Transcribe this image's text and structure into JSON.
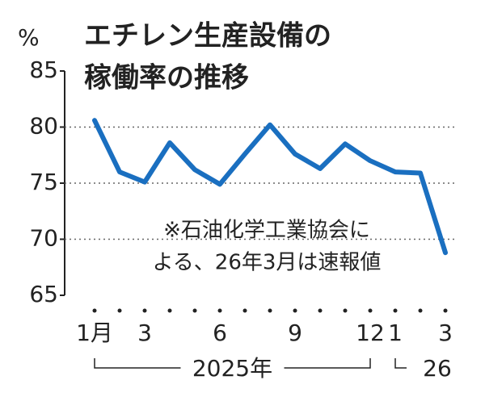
{
  "chart_data": {
    "type": "line",
    "title": [
      "エチレン生産設備の",
      "稼働率の推移"
    ],
    "y_unit": "%",
    "categories": [
      "1月",
      null,
      "3",
      null,
      null,
      "6",
      null,
      null,
      "9",
      null,
      null,
      "12",
      "1",
      null,
      "3"
    ],
    "year_labels": [
      "2025年",
      "26"
    ],
    "series": [
      {
        "color": "#1a6fc0",
        "values": [
          80.6,
          76.0,
          75.1,
          78.6,
          76.2,
          74.9,
          77.6,
          80.2,
          77.6,
          76.3,
          78.5,
          77.0,
          76.0,
          75.9,
          68.8
        ]
      }
    ],
    "ylim": [
      65,
      85
    ],
    "yticks": [
      65,
      70,
      75,
      80,
      85
    ],
    "grid": true,
    "note": [
      "※石油化学工業協会に",
      "よる、26年3月は速報値"
    ]
  }
}
